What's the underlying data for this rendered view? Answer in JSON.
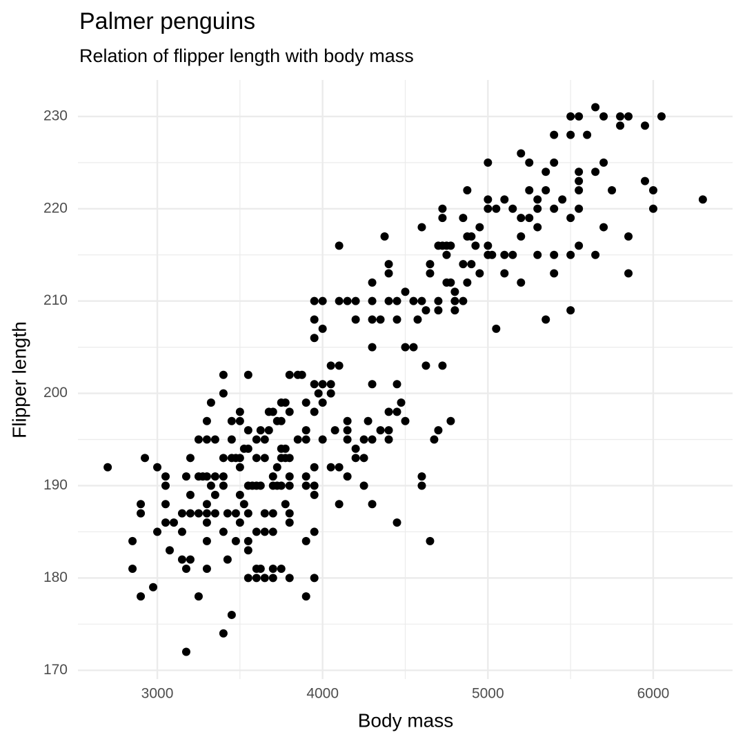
{
  "chart_data": {
    "type": "scatter",
    "title": "Palmer penguins",
    "subtitle": "Relation of flipper length with body mass",
    "x_label": "Body mass",
    "y_label": "Flipper length",
    "color": "#000000",
    "grid": true,
    "minor_grid": true,
    "xlim": [
      2520,
      6480
    ],
    "xticks": [
      3000,
      4000,
      5000,
      6000
    ],
    "ylim": [
      169.05,
      233.95
    ],
    "yticks": [
      170,
      180,
      190,
      200,
      210,
      220,
      230
    ],
    "x": [
      2700,
      2850,
      2850,
      2900,
      2900,
      2900,
      2925,
      2975,
      3000,
      3000,
      3050,
      3050,
      3050,
      3050,
      3075,
      3100,
      3150,
      3150,
      3150,
      3175,
      3175,
      3175,
      3200,
      3200,
      3200,
      3200,
      3250,
      3250,
      3250,
      3250,
      3275,
      3300,
      3300,
      3300,
      3300,
      3300,
      3300,
      3300,
      3300,
      3325,
      3325,
      3350,
      3350,
      3350,
      3350,
      3400,
      3400,
      3400,
      3400,
      3400,
      3400,
      3400,
      3425,
      3425,
      3450,
      3450,
      3450,
      3450,
      3475,
      3475,
      3475,
      3500,
      3500,
      3500,
      3500,
      3500,
      3500,
      3525,
      3525,
      3550,
      3550,
      3550,
      3550,
      3550,
      3550,
      3550,
      3550,
      3575,
      3600,
      3600,
      3600,
      3600,
      3600,
      3600,
      3625,
      3625,
      3625,
      3650,
      3650,
      3650,
      3650,
      3650,
      3675,
      3675,
      3700,
      3700,
      3700,
      3700,
      3700,
      3700,
      3700,
      3725,
      3725,
      3725,
      3750,
      3750,
      3750,
      3750,
      3750,
      3750,
      3775,
      3775,
      3775,
      3775,
      3800,
      3800,
      3800,
      3800,
      3800,
      3800,
      3800,
      3800,
      3850,
      3850,
      3875,
      3900,
      3900,
      3900,
      3900,
      3900,
      3900,
      3900,
      3950,
      3950,
      3950,
      3950,
      3950,
      3950,
      3950,
      3950,
      3950,
      3950,
      3975,
      4000,
      4000,
      4000,
      4000,
      4000,
      4050,
      4050,
      4050,
      4050,
      4075,
      4100,
      4100,
      4100,
      4100,
      4100,
      4150,
      4150,
      4150,
      4150,
      4150,
      4200,
      4200,
      4200,
      4200,
      4250,
      4250,
      4250,
      4275,
      4300,
      4300,
      4300,
      4300,
      4300,
      4300,
      4300,
      4350,
      4350,
      4375,
      4400,
      4400,
      4400,
      4400,
      4400,
      4400,
      4450,
      4450,
      4450,
      4450,
      4450,
      4475,
      4500,
      4500,
      4500,
      4550,
      4550,
      4575,
      4600,
      4600,
      4600,
      4600,
      4625,
      4625,
      4650,
      4650,
      4650,
      4675,
      4700,
      4700,
      4700,
      4700,
      4725,
      4725,
      4725,
      4725,
      4750,
      4750,
      4750,
      4775,
      4775,
      4775,
      4800,
      4800,
      4800,
      4850,
      4850,
      4850,
      4875,
      4875,
      4875,
      4900,
      4900,
      4925,
      4950,
      4950,
      5000,
      5000,
      5000,
      5000,
      5000,
      5025,
      5050,
      5050,
      5100,
      5100,
      5100,
      5150,
      5150,
      5200,
      5200,
      5200,
      5200,
      5250,
      5250,
      5250,
      5300,
      5300,
      5300,
      5300,
      5350,
      5350,
      5350,
      5400,
      5400,
      5400,
      5400,
      5400,
      5450,
      5500,
      5500,
      5500,
      5500,
      5500,
      5550,
      5550,
      5550,
      5550,
      5550,
      5550,
      5600,
      5650,
      5650,
      5650,
      5700,
      5700,
      5700,
      5750,
      5800,
      5800,
      5850,
      5850,
      5850,
      5950,
      5950,
      6000,
      6000,
      6050,
      6300
    ],
    "values": [
      192,
      184,
      181,
      188,
      187,
      178,
      193,
      179,
      192,
      185,
      191,
      190,
      188,
      186,
      183,
      186,
      187,
      185,
      182,
      191,
      181,
      172,
      193,
      189,
      187,
      182,
      195,
      191,
      187,
      178,
      191,
      197,
      195,
      191,
      188,
      187,
      186,
      184,
      181,
      199,
      190,
      195,
      191,
      189,
      187,
      202,
      200,
      193,
      191,
      190,
      185,
      174,
      187,
      182,
      197,
      195,
      193,
      176,
      193,
      187,
      184,
      198,
      197,
      193,
      192,
      189,
      186,
      194,
      188,
      202,
      196,
      194,
      190,
      187,
      184,
      183,
      180,
      190,
      195,
      193,
      190,
      185,
      181,
      180,
      196,
      190,
      181,
      195,
      193,
      187,
      185,
      180,
      198,
      196,
      198,
      191,
      190,
      187,
      185,
      181,
      180,
      197,
      192,
      190,
      199,
      197,
      194,
      193,
      190,
      181,
      199,
      194,
      193,
      188,
      202,
      198,
      193,
      191,
      190,
      187,
      186,
      180,
      202,
      195,
      202,
      199,
      196,
      195,
      191,
      190,
      184,
      178,
      210,
      208,
      206,
      201,
      198,
      192,
      190,
      189,
      185,
      180,
      200,
      210,
      207,
      201,
      199,
      195,
      203,
      201,
      200,
      192,
      196,
      216,
      210,
      203,
      192,
      188,
      210,
      197,
      196,
      195,
      191,
      210,
      208,
      194,
      193,
      195,
      193,
      190,
      197,
      212,
      210,
      208,
      205,
      201,
      195,
      188,
      208,
      196,
      217,
      214,
      213,
      210,
      198,
      196,
      195,
      210,
      208,
      201,
      198,
      186,
      199,
      211,
      205,
      197,
      210,
      205,
      208,
      218,
      210,
      191,
      190,
      209,
      203,
      214,
      213,
      184,
      195,
      216,
      210,
      209,
      196,
      220,
      219,
      216,
      203,
      216,
      215,
      212,
      216,
      212,
      197,
      211,
      210,
      209,
      219,
      214,
      210,
      222,
      217,
      212,
      217,
      214,
      216,
      218,
      213,
      225,
      221,
      220,
      216,
      215,
      215,
      220,
      207,
      221,
      215,
      213,
      220,
      215,
      226,
      219,
      217,
      212,
      225,
      222,
      219,
      221,
      220,
      215,
      218,
      224,
      222,
      208,
      228,
      225,
      220,
      215,
      213,
      221,
      230,
      228,
      219,
      215,
      209,
      230,
      224,
      223,
      222,
      220,
      216,
      228,
      231,
      224,
      215,
      230,
      225,
      218,
      222,
      230,
      229,
      230,
      217,
      213,
      229,
      223,
      222,
      220,
      230,
      221
    ]
  }
}
